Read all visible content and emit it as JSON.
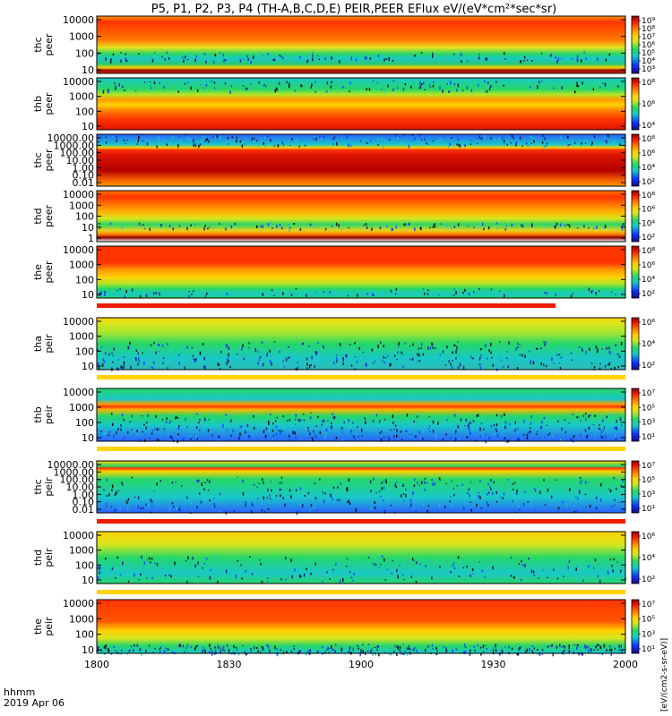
{
  "chart_data": {
    "type": "heatmap",
    "title": "P5, P1, P2, P3, P4 (TH-A,B,C,D,E) PEIR,PEER EFlux eV/(eV*cm²*sec*sr)",
    "x_axis": {
      "range": [
        "18:00",
        "20:00"
      ],
      "tick_labels": [
        "1800",
        "1830",
        "1900",
        "1930",
        "2000"
      ],
      "label_line1": "hhmm",
      "label_line2": "2019 Apr 06"
    },
    "colorbar_label": "[eV/(cm2-s-sr-eV)]",
    "colormap": [
      "#1b0a78",
      "#0b35ff",
      "#19c8c8",
      "#27d766",
      "#d6e61e",
      "#ffd200",
      "#ff7a00",
      "#ee1c00",
      "#8c0000"
    ],
    "panels": [
      {
        "probe": "thc",
        "species": "peer",
        "yscale": "log",
        "yticks": [
          "10",
          "100",
          "1000",
          "10000"
        ],
        "cbar_ticks": [
          "10³",
          "10⁴",
          "10⁵",
          "10⁶",
          "10⁷",
          "10⁸",
          "10⁹"
        ]
      },
      {
        "probe": "thb",
        "species": "peer",
        "yscale": "log",
        "yticks": [
          "10",
          "100",
          "1000",
          "10000"
        ],
        "cbar_ticks": [
          "10⁴",
          "10⁶",
          "10⁸"
        ]
      },
      {
        "probe": "thc",
        "species": "peer",
        "yscale": "log",
        "yticks": [
          "0.01",
          "0.10",
          "1.00",
          "10.00",
          "100.00",
          "1000.00",
          "10000.00"
        ],
        "cbar_ticks": [
          "10²",
          "10⁴",
          "10⁶",
          "10⁸"
        ]
      },
      {
        "probe": "thd",
        "species": "peer",
        "yscale": "log",
        "yticks": [
          "1",
          "10",
          "100",
          "1000",
          "10000"
        ],
        "cbar_ticks": [
          "10²",
          "10⁴",
          "10⁶",
          "10⁸"
        ]
      },
      {
        "probe": "the",
        "species": "peer",
        "yscale": "log",
        "yticks": [
          "10",
          "100",
          "1000",
          "10000"
        ],
        "cbar_ticks": [
          "10²",
          "10⁴",
          "10⁶",
          "10⁸"
        ]
      },
      {
        "probe": "tha",
        "species": "peir",
        "yscale": "log",
        "yticks": [
          "10",
          "100",
          "1000",
          "10000"
        ],
        "cbar_ticks": [
          "10²",
          "10⁴",
          "10⁶"
        ]
      },
      {
        "probe": "thb",
        "species": "peir",
        "yscale": "log",
        "yticks": [
          "10",
          "100",
          "1000",
          "10000"
        ],
        "cbar_ticks": [
          "10¹",
          "10³",
          "10⁵",
          "10⁷"
        ]
      },
      {
        "probe": "thc",
        "species": "peir",
        "yscale": "log",
        "yticks": [
          "0.01",
          "0.10",
          "1.00",
          "10.00",
          "100.00",
          "1000.00",
          "10000.00"
        ],
        "cbar_ticks": [
          "10¹",
          "10³",
          "10⁵",
          "10⁷"
        ]
      },
      {
        "probe": "thd",
        "species": "peir",
        "yscale": "log",
        "yticks": [
          "10",
          "100",
          "1000",
          "10000"
        ],
        "cbar_ticks": [
          "10²",
          "10⁴",
          "10⁶"
        ]
      },
      {
        "probe": "the",
        "species": "peir",
        "yscale": "log",
        "yticks": [
          "10",
          "100",
          "1000",
          "10000"
        ],
        "cbar_ticks": [
          "10¹",
          "10³",
          "10⁵",
          "10⁷"
        ]
      }
    ]
  }
}
